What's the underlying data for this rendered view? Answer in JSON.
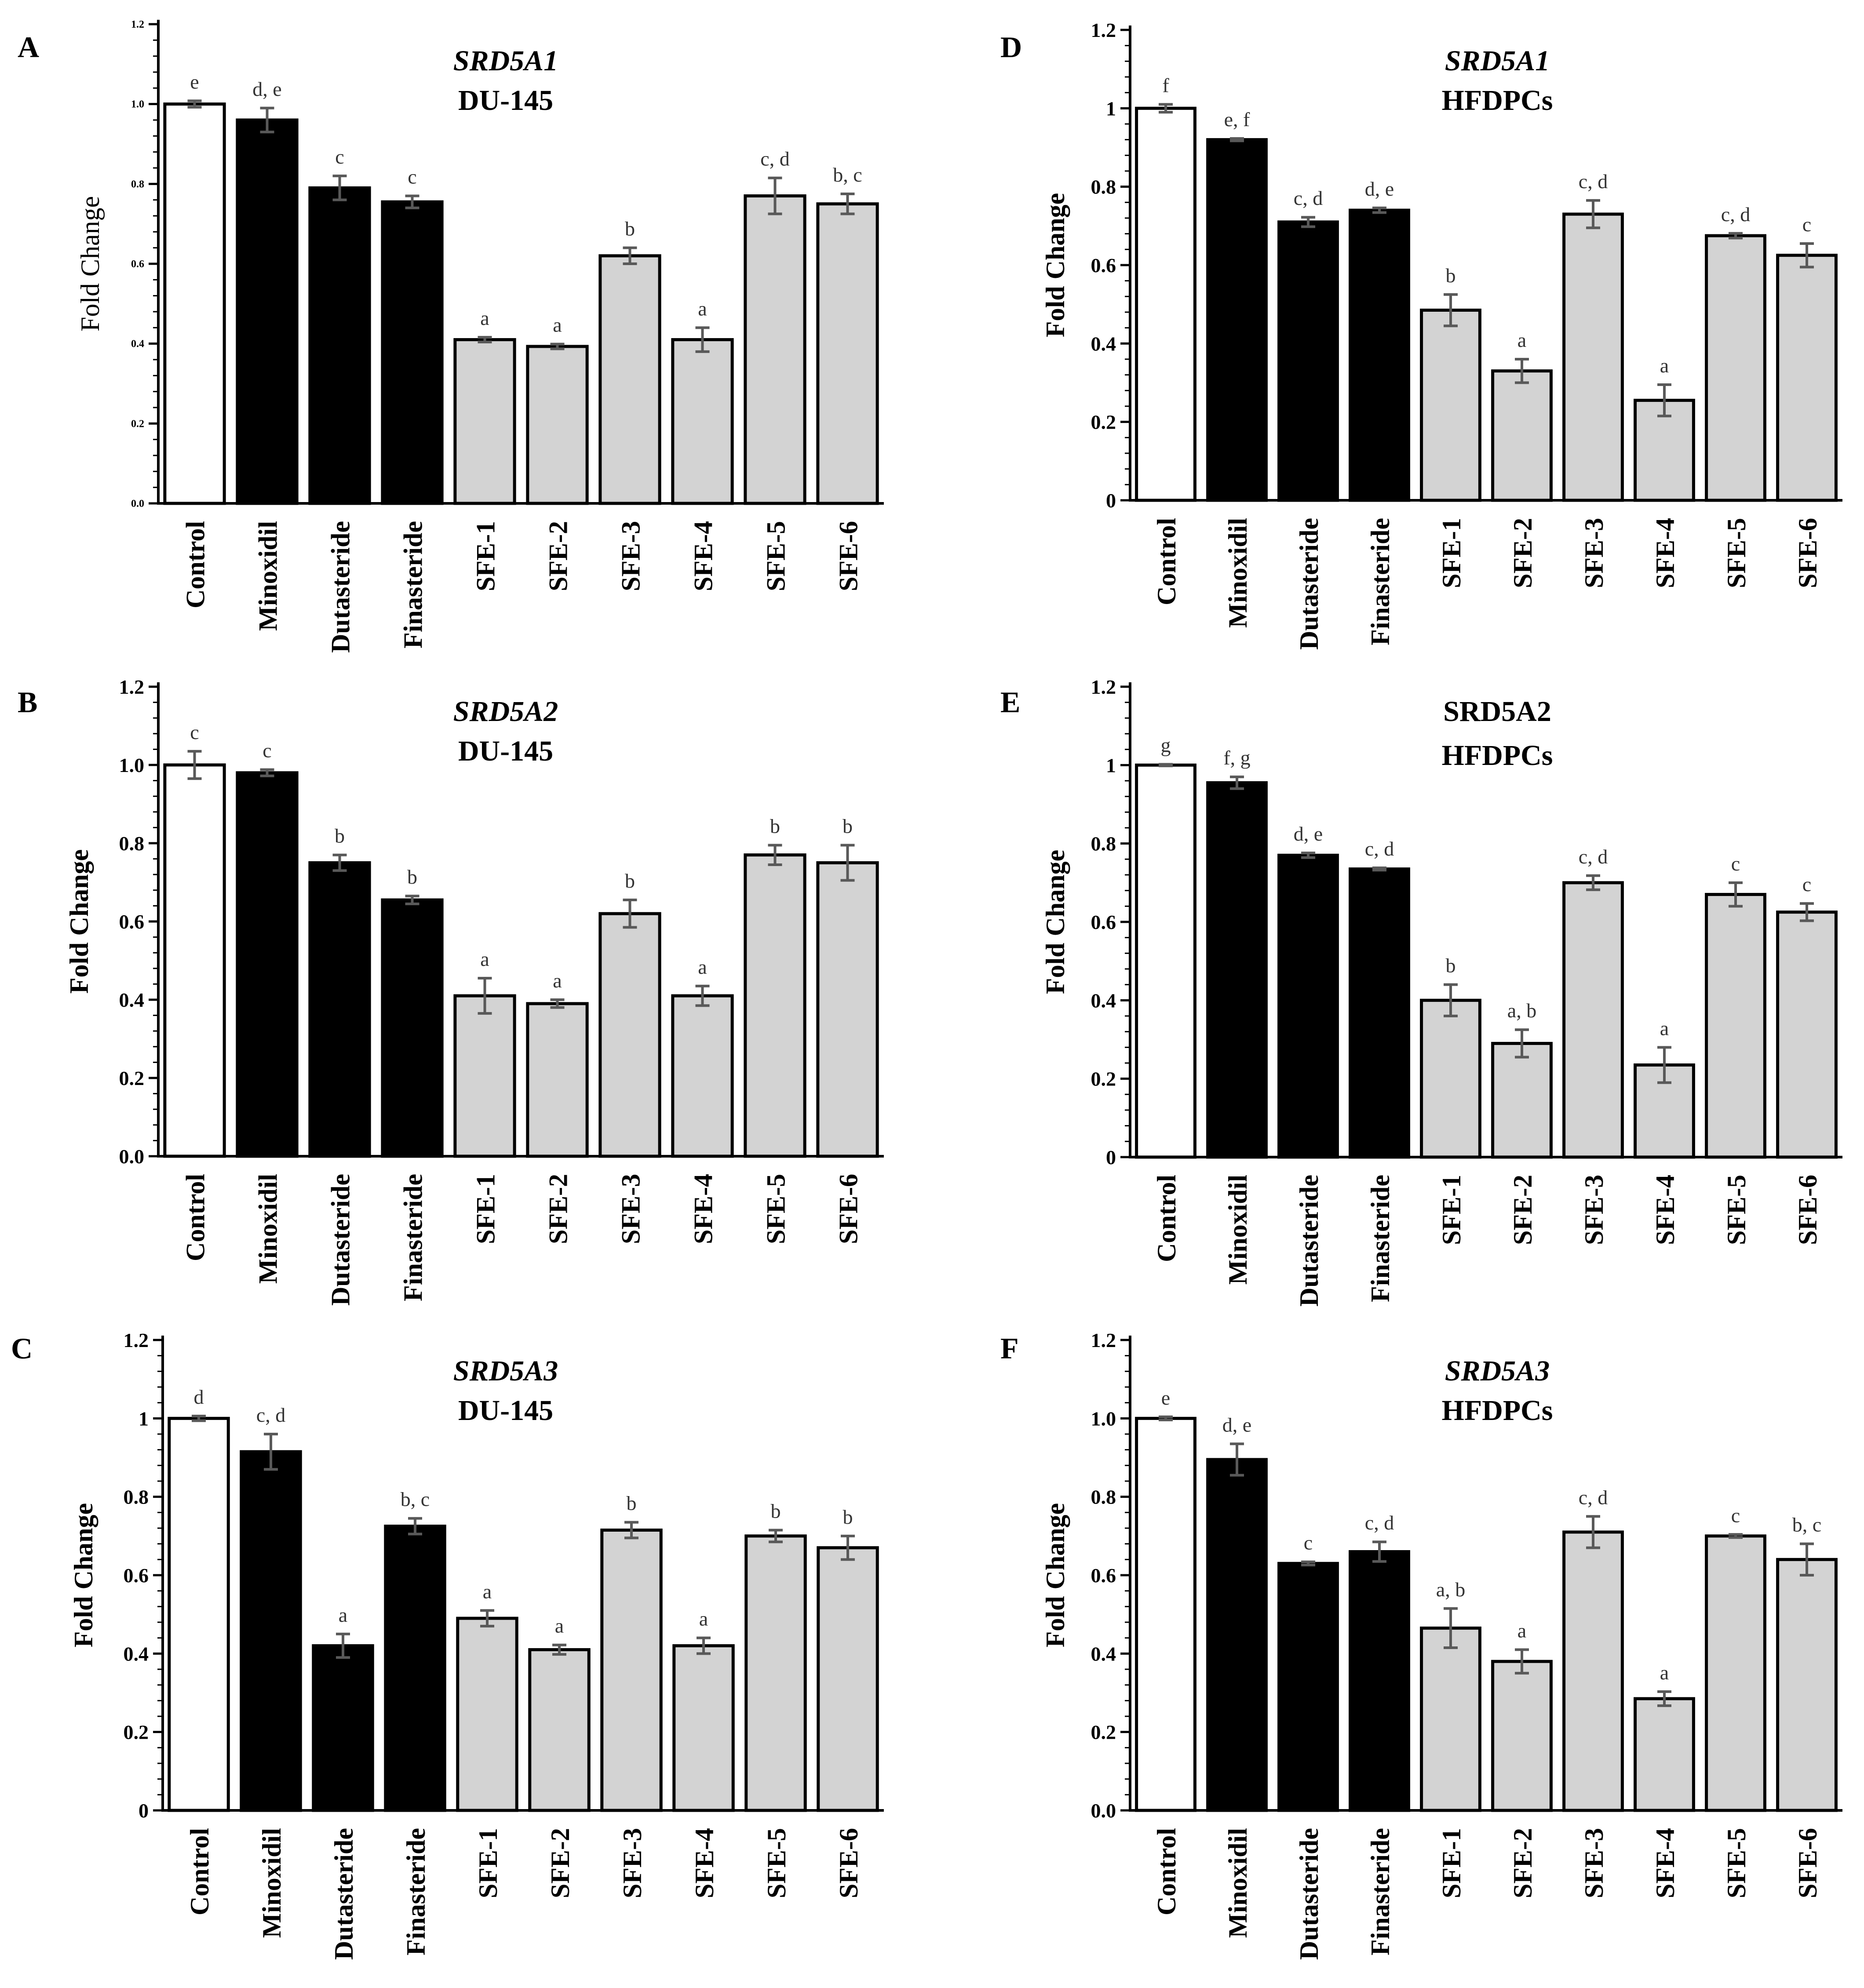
{
  "colors": {
    "control": "#ffffff",
    "drug": "#000000",
    "extract": "#d3d3d3",
    "errorbar": "#595959",
    "axis": "#000000"
  },
  "chart_data": [
    {
      "panel": "A",
      "type": "bar",
      "title": "SRD5A1",
      "subtitle": "DU-145",
      "ylabel": "Fold Change",
      "ylim": [
        0,
        1.2
      ],
      "yticks": [
        "0.0",
        "0.2",
        "0.4",
        "0.6",
        "0.8",
        "1.0",
        "1.2"
      ],
      "categories": [
        "Control",
        "Minoxidil",
        "Dutasteride",
        "Finasteride",
        "SFE-1",
        "SFE-2",
        "SFE-3",
        "SFE-4",
        "SFE-5",
        "SFE-6"
      ],
      "values": [
        1.0,
        0.96,
        0.79,
        0.755,
        0.41,
        0.393,
        0.62,
        0.41,
        0.77,
        0.75
      ],
      "errors": [
        0.008,
        0.03,
        0.03,
        0.015,
        0.006,
        0.006,
        0.02,
        0.03,
        0.045,
        0.025
      ],
      "significance": [
        "e",
        "d, e",
        "c",
        "c",
        "a",
        "a",
        "b",
        "a",
        "c, d",
        "b, c"
      ]
    },
    {
      "panel": "B",
      "type": "bar",
      "title": "SRD5A2",
      "subtitle": "DU-145",
      "ylabel": "Fold Change",
      "ylim": [
        0,
        1.2
      ],
      "yticks": [
        "0.0",
        "0.2",
        "0.4",
        "0.6",
        "0.8",
        "1.0",
        "1.2"
      ],
      "categories": [
        "Control",
        "Minoxidil",
        "Dutasteride",
        "Finasteride",
        "SFE-1",
        "SFE-2",
        "SFE-3",
        "SFE-4",
        "SFE-5",
        "SFE-6"
      ],
      "values": [
        1.0,
        0.98,
        0.75,
        0.655,
        0.41,
        0.39,
        0.62,
        0.41,
        0.77,
        0.75
      ],
      "errors": [
        0.035,
        0.008,
        0.02,
        0.01,
        0.045,
        0.01,
        0.035,
        0.025,
        0.025,
        0.045
      ],
      "significance": [
        "c",
        "c",
        "b",
        "b",
        "a",
        "a",
        "b",
        "a",
        "b",
        "b"
      ]
    },
    {
      "panel": "C",
      "type": "bar",
      "title": "SRD5A3",
      "subtitle": "DU-145",
      "ylabel": "Fold Change",
      "ylim": [
        0,
        1.2
      ],
      "yticks": [
        "0",
        "0.2",
        "0.4",
        "0.6",
        "0.8",
        "1",
        "1.2"
      ],
      "categories": [
        "Control",
        "Minoxidil",
        "Dutasteride",
        "Finasteride",
        "SFE-1",
        "SFE-2",
        "SFE-3",
        "SFE-4",
        "SFE-5",
        "SFE-6"
      ],
      "values": [
        1.0,
        0.915,
        0.42,
        0.725,
        0.49,
        0.41,
        0.715,
        0.42,
        0.7,
        0.67
      ],
      "errors": [
        0.006,
        0.045,
        0.03,
        0.02,
        0.02,
        0.012,
        0.02,
        0.02,
        0.015,
        0.03
      ],
      "significance": [
        "d",
        "c, d",
        "a",
        "b, c",
        "a",
        "a",
        "b",
        "a",
        "b",
        "b"
      ]
    },
    {
      "panel": "D",
      "type": "bar",
      "title": "SRD5A1",
      "subtitle": "HFDPCs",
      "ylabel": "Fold Change",
      "ylim": [
        0,
        1.2
      ],
      "yticks": [
        "0",
        "0.2",
        "0.4",
        "0.6",
        "0.8",
        "1",
        "1.2"
      ],
      "categories": [
        "Control",
        "Minoxidil",
        "Dutasteride",
        "Finasteride",
        "SFE-1",
        "SFE-2",
        "SFE-3",
        "SFE-4",
        "SFE-5",
        "SFE-6"
      ],
      "values": [
        1.0,
        0.92,
        0.71,
        0.74,
        0.485,
        0.33,
        0.73,
        0.255,
        0.675,
        0.625
      ],
      "errors": [
        0.01,
        0.003,
        0.012,
        0.006,
        0.04,
        0.03,
        0.035,
        0.04,
        0.006,
        0.03
      ],
      "significance": [
        "f",
        "e, f",
        "c, d",
        "d, e",
        "b",
        "a",
        "c, d",
        "a",
        "c, d",
        "c"
      ]
    },
    {
      "panel": "E",
      "type": "bar",
      "title": "SRD5A2",
      "subtitle": "HFDPCs",
      "ylabel": "Fold Change",
      "ylim": [
        0,
        1.2
      ],
      "yticks": [
        "0",
        "0.2",
        "0.4",
        "0.6",
        "0.8",
        "1",
        "1.2"
      ],
      "categories": [
        "Control",
        "Minoxidil",
        "Dutasteride",
        "Finasteride",
        "SFE-1",
        "SFE-2",
        "SFE-3",
        "SFE-4",
        "SFE-5",
        "SFE-6"
      ],
      "values": [
        1.0,
        0.955,
        0.77,
        0.735,
        0.4,
        0.29,
        0.7,
        0.235,
        0.67,
        0.625
      ],
      "errors": [
        0.002,
        0.015,
        0.006,
        0.003,
        0.04,
        0.035,
        0.018,
        0.045,
        0.03,
        0.022
      ],
      "significance": [
        "g",
        "f, g",
        "d, e",
        "c, d",
        "b",
        "a, b",
        "c, d",
        "a",
        "c",
        "c"
      ]
    },
    {
      "panel": "F",
      "type": "bar",
      "title": "SRD5A3",
      "subtitle": "HFDPCs",
      "ylabel": "Fold Change",
      "ylim": [
        0,
        1.2
      ],
      "yticks": [
        "0.0",
        "0.2",
        "0.4",
        "0.6",
        "0.8",
        "1.0",
        "1.2"
      ],
      "categories": [
        "Control",
        "Minoxidil",
        "Dutasteride",
        "Finasteride",
        "SFE-1",
        "SFE-2",
        "SFE-3",
        "SFE-4",
        "SFE-5",
        "SFE-6"
      ],
      "values": [
        1.0,
        0.895,
        0.63,
        0.66,
        0.465,
        0.38,
        0.71,
        0.285,
        0.7,
        0.64
      ],
      "errors": [
        0.004,
        0.04,
        0.004,
        0.025,
        0.05,
        0.03,
        0.04,
        0.018,
        0.004,
        0.04
      ],
      "significance": [
        "e",
        "d, e",
        "c",
        "c, d",
        "a, b",
        "a",
        "c, d",
        "a",
        "c",
        "b, c"
      ]
    }
  ]
}
